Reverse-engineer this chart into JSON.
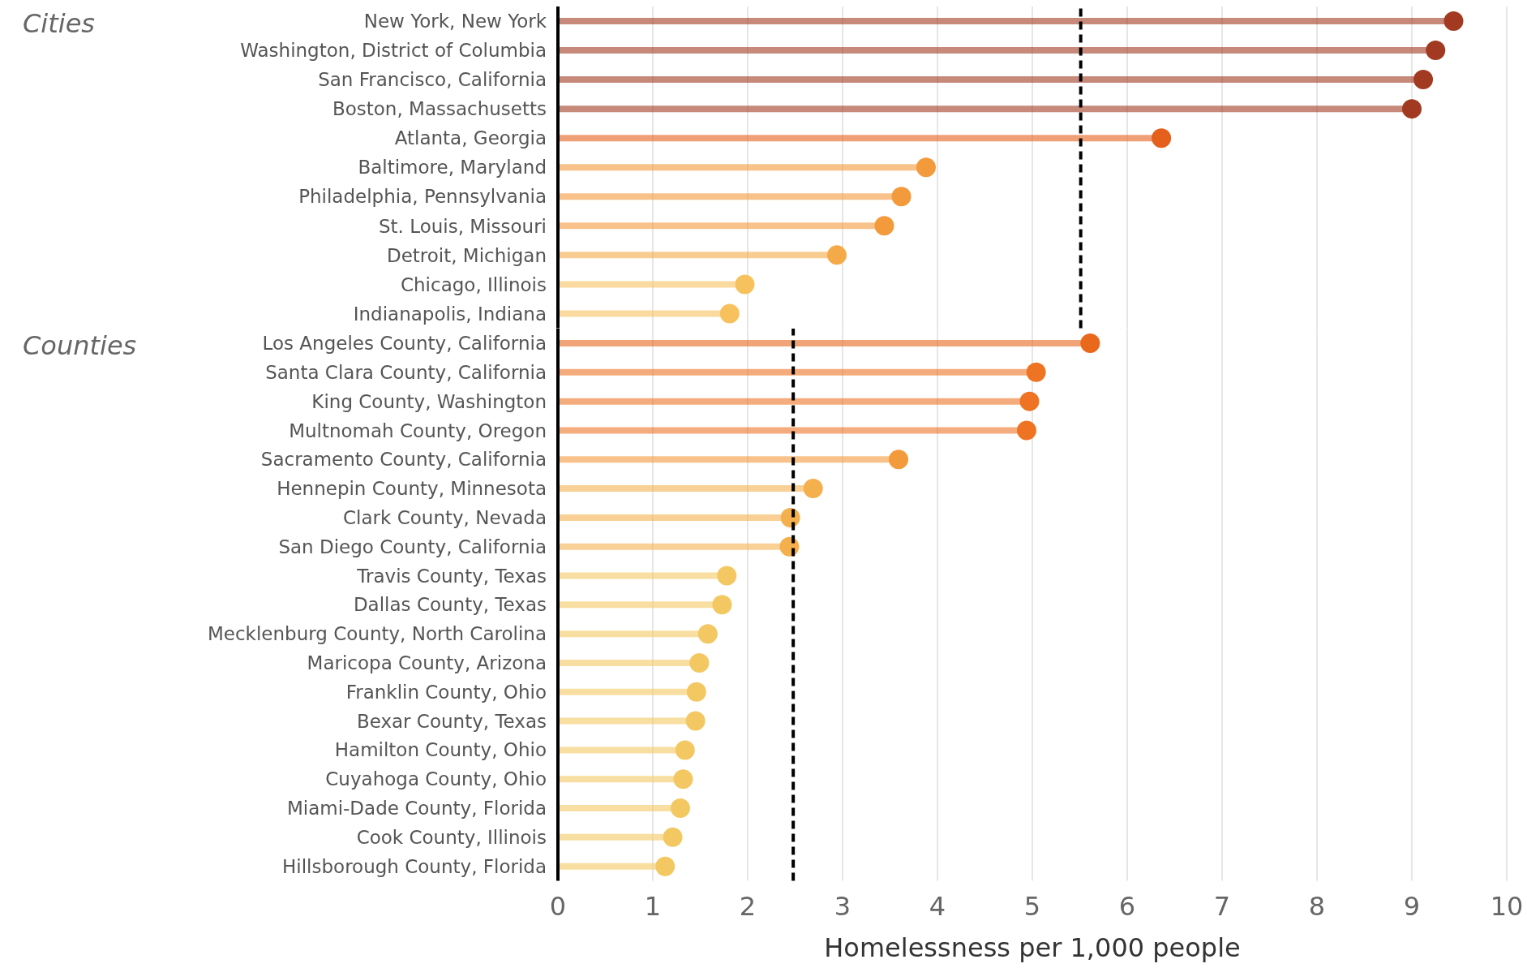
{
  "chart_data": [
    {
      "type": "lollipop",
      "orientation": "horizontal",
      "title": "Cities",
      "categories": [
        "New York, New York",
        "Washington, District of Columbia",
        "San Francisco, California",
        "Boston, Massachusetts",
        "Atlanta, Georgia",
        "Baltimore, Maryland",
        "Philadelphia, Pennsylvania",
        "St. Louis, Missouri",
        "Detroit, Michigan",
        "Chicago, Illinois",
        "Indianapolis, Indiana"
      ],
      "values": [
        9.44,
        9.25,
        9.12,
        9.0,
        6.36,
        3.88,
        3.62,
        3.44,
        2.94,
        1.97,
        1.81
      ],
      "colors": [
        "#a23a22",
        "#a23a22",
        "#a23a22",
        "#a23a22",
        "#e4601c",
        "#f39a3c",
        "#f39a3c",
        "#f39a3c",
        "#f5aa4a",
        "#f7c25e",
        "#f7c25e"
      ],
      "xlim": [
        0,
        10
      ],
      "xticks": [
        0,
        1,
        2,
        3,
        4,
        5,
        6,
        7,
        8,
        9,
        10
      ],
      "grid": "x",
      "tick_labels": "y",
      "marker": "circle",
      "ref_lines": [
        {
          "axis": "x",
          "value": 5.51,
          "line_style": "dashed",
          "color": "#000000"
        }
      ]
    },
    {
      "type": "lollipop",
      "orientation": "horizontal",
      "title": "Counties",
      "xlabel": "Homelessness per 1,000 people",
      "categories": [
        "Los Angeles County, California",
        "Santa Clara County, California",
        "King County, Washington",
        "Multnomah County, Oregon",
        "Sacramento County, California",
        "Hennepin County, Minnesota",
        "Clark County, Nevada",
        "San Diego County, California",
        "Travis County, Texas",
        "Dallas County, Texas",
        "Mecklenburg County, North Carolina",
        "Maricopa County, Arizona",
        "Franklin County, Ohio",
        "Bexar County, Texas",
        "Hamilton County, Ohio",
        "Cuyahoga County, Ohio",
        "Miami-Dade County, Florida",
        "Cook County, Illinois",
        "Hillsborough County, Florida"
      ],
      "values": [
        5.61,
        5.04,
        4.97,
        4.94,
        3.59,
        2.69,
        2.45,
        2.44,
        1.78,
        1.73,
        1.58,
        1.49,
        1.46,
        1.45,
        1.34,
        1.32,
        1.29,
        1.21,
        1.13
      ],
      "colors": [
        "#e8681c",
        "#ee7424",
        "#ee7424",
        "#ee7424",
        "#f39a3c",
        "#f5b04e",
        "#f5b04e",
        "#f5b04e",
        "#f3c862",
        "#f3c862",
        "#f3c862",
        "#f3c862",
        "#f3c862",
        "#f3c862",
        "#f3c862",
        "#f3c862",
        "#f3c862",
        "#f3c862",
        "#f3c862"
      ],
      "xlim": [
        0,
        10
      ],
      "xticks": [
        0,
        1,
        2,
        3,
        4,
        5,
        6,
        7,
        8,
        9,
        10
      ],
      "grid": "x",
      "marker": "circle",
      "ref_lines": [
        {
          "axis": "x",
          "value": 2.48,
          "line_style": "dashed",
          "color": "#000000"
        }
      ]
    }
  ]
}
